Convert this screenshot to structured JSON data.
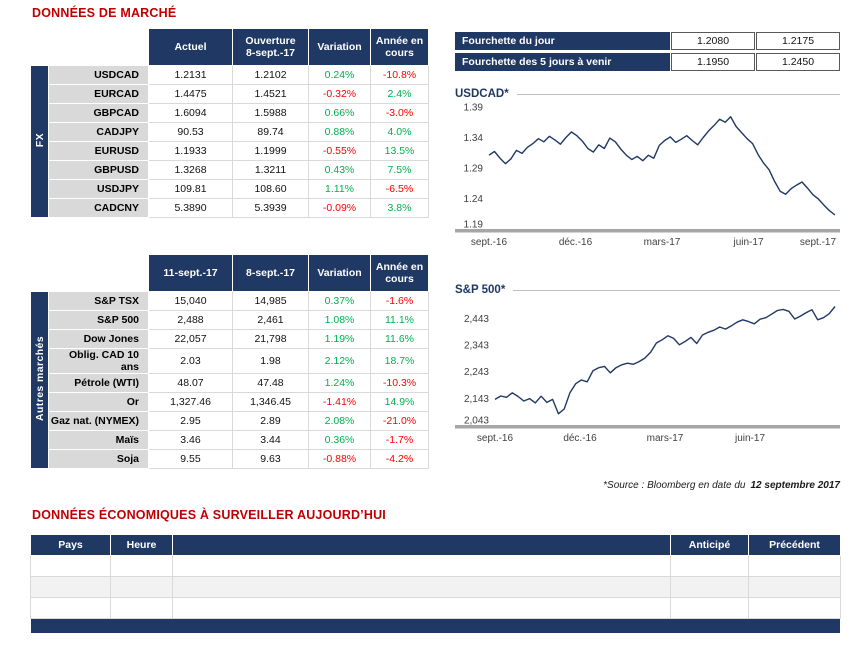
{
  "titles": {
    "market": "DONNÉES DE MARCHÉ",
    "econ": "DONNÉES ÉCONOMIQUES À SURVEILLER AUJOURD’HUI"
  },
  "colors": {
    "navy": "#1F3864",
    "title_red": "#C00000",
    "positive_green": "#00B050",
    "negative_red": "#FF0000",
    "label_gray": "#D9D9D9",
    "axis_gray": "#A6A6A6"
  },
  "fourchette": {
    "rows": [
      {
        "label": "Fourchette du jour",
        "low": "1.2080",
        "high": "1.2175"
      },
      {
        "label": "Fourchette des 5 jours à venir",
        "low": "1.1950",
        "high": "1.2450"
      }
    ]
  },
  "fx_table": {
    "side_label": "FX",
    "headers": [
      "Actuel",
      "Ouverture\n8-sept.-17",
      "Variation",
      "Année en\ncours"
    ],
    "rows": [
      {
        "label": "USDCAD",
        "c1": "1.2131",
        "c2": "1.2102",
        "variation": "0.24%",
        "ytd": "-10.8%"
      },
      {
        "label": "EURCAD",
        "c1": "1.4475",
        "c2": "1.4521",
        "variation": "-0.32%",
        "ytd": "2.4%"
      },
      {
        "label": "GBPCAD",
        "c1": "1.6094",
        "c2": "1.5988",
        "variation": "0.66%",
        "ytd": "-3.0%"
      },
      {
        "label": "CADJPY",
        "c1": "90.53",
        "c2": "89.74",
        "variation": "0.88%",
        "ytd": "4.0%"
      },
      {
        "label": "EURUSD",
        "c1": "1.1933",
        "c2": "1.1999",
        "variation": "-0.55%",
        "ytd": "13.5%"
      },
      {
        "label": "GBPUSD",
        "c1": "1.3268",
        "c2": "1.3211",
        "variation": "0.43%",
        "ytd": "7.5%"
      },
      {
        "label": "USDJPY",
        "c1": "109.81",
        "c2": "108.60",
        "variation": "1.11%",
        "ytd": "-6.5%"
      },
      {
        "label": "CADCNY",
        "c1": "5.3890",
        "c2": "5.3939",
        "variation": "-0.09%",
        "ytd": "3.8%"
      }
    ]
  },
  "markets_table": {
    "side_label": "Autres marchés",
    "headers": [
      "11-sept.-17",
      "8-sept.-17",
      "Variation",
      "Année en\ncours"
    ],
    "rows": [
      {
        "label": "S&P TSX",
        "c1": "15,040",
        "c2": "14,985",
        "variation": "0.37%",
        "ytd": "-1.6%"
      },
      {
        "label": "S&P 500",
        "c1": "2,488",
        "c2": "2,461",
        "variation": "1.08%",
        "ytd": "11.1%"
      },
      {
        "label": "Dow Jones",
        "c1": "22,057",
        "c2": "21,798",
        "variation": "1.19%",
        "ytd": "11.6%"
      },
      {
        "label": "Oblig. CAD 10 ans",
        "c1": "2.03",
        "c2": "1.98",
        "variation": "2.12%",
        "ytd": "18.7%"
      },
      {
        "label": "Pétrole (WTI)",
        "c1": "48.07",
        "c2": "47.48",
        "variation": "1.24%",
        "ytd": "-10.3%"
      },
      {
        "label": "Or",
        "c1": "1,327.46",
        "c2": "1,346.45",
        "variation": "-1.41%",
        "ytd": "14.9%"
      },
      {
        "label": "Gaz nat. (NYMEX)",
        "c1": "2.95",
        "c2": "2.89",
        "variation": "2.08%",
        "ytd": "-21.0%"
      },
      {
        "label": "Maïs",
        "c1": "3.46",
        "c2": "3.44",
        "variation": "0.36%",
        "ytd": "-1.7%"
      },
      {
        "label": "Soja",
        "c1": "9.55",
        "c2": "9.63",
        "variation": "-0.88%",
        "ytd": "-4.2%"
      }
    ]
  },
  "source": {
    "prefix": "*Source : Bloomberg en date du",
    "date": "12 septembre 2017"
  },
  "econ_table": {
    "headers": [
      "Pays",
      "Heure",
      "",
      "Anticipé",
      "Précédent"
    ],
    "rows": [
      [
        "",
        "",
        "",
        "",
        ""
      ],
      [
        "",
        "",
        "",
        "",
        ""
      ],
      [
        "",
        "",
        "",
        "",
        ""
      ]
    ]
  },
  "chart_data": [
    {
      "type": "line",
      "title": "USDCAD*",
      "ylim": [
        1.19,
        1.39
      ],
      "yticks": [
        {
          "v": 1.39,
          "label": "1.39"
        },
        {
          "v": 1.34,
          "label": "1.34"
        },
        {
          "v": 1.29,
          "label": "1.29"
        },
        {
          "v": 1.24,
          "label": "1.24"
        },
        {
          "v": 1.19,
          "label": "1.19"
        }
      ],
      "xticks": [
        {
          "p": 0,
          "label": "sept.-16"
        },
        {
          "p": 0.25,
          "label": "déc.-16"
        },
        {
          "p": 0.5,
          "label": "mars-17"
        },
        {
          "p": 0.75,
          "label": "juin-17"
        },
        {
          "p": 1,
          "label": "sept.-17"
        }
      ],
      "values": [
        1.311,
        1.317,
        1.306,
        1.297,
        1.305,
        1.319,
        1.314,
        1.324,
        1.33,
        1.338,
        1.333,
        1.342,
        1.336,
        1.329,
        1.34,
        1.349,
        1.343,
        1.334,
        1.322,
        1.316,
        1.328,
        1.322,
        1.339,
        1.333,
        1.321,
        1.311,
        1.304,
        1.309,
        1.302,
        1.311,
        1.306,
        1.327,
        1.335,
        1.341,
        1.332,
        1.337,
        1.343,
        1.335,
        1.328,
        1.34,
        1.351,
        1.36,
        1.37,
        1.365,
        1.374,
        1.358,
        1.348,
        1.338,
        1.33,
        1.312,
        1.298,
        1.287,
        1.268,
        1.252,
        1.247,
        1.256,
        1.262,
        1.267,
        1.257,
        1.246,
        1.239,
        1.229,
        1.22,
        1.213
      ]
    },
    {
      "type": "line",
      "title": "S&P 500*",
      "ylim": [
        2043,
        2501
      ],
      "yticks": [
        {
          "v": 2443,
          "label": "2,443"
        },
        {
          "v": 2343,
          "label": "2,343"
        },
        {
          "v": 2243,
          "label": "2,243"
        },
        {
          "v": 2143,
          "label": "2,143"
        },
        {
          "v": 2043,
          "label": "2,043"
        }
      ],
      "xticks": [
        {
          "p": 0,
          "label": "sept.-16"
        },
        {
          "p": 0.25,
          "label": "déc.-16"
        },
        {
          "p": 0.5,
          "label": "mars-17"
        },
        {
          "p": 0.75,
          "label": "juin-17"
        }
      ],
      "values": [
        2139,
        2152,
        2147,
        2164,
        2150,
        2133,
        2142,
        2126,
        2151,
        2128,
        2139,
        2085,
        2103,
        2164,
        2198,
        2212,
        2205,
        2247,
        2258,
        2263,
        2239,
        2258,
        2269,
        2275,
        2271,
        2281,
        2294,
        2316,
        2351,
        2363,
        2378,
        2368,
        2344,
        2357,
        2372,
        2349,
        2381,
        2391,
        2399,
        2411,
        2403,
        2415,
        2429,
        2438,
        2431,
        2423,
        2440,
        2446,
        2459,
        2473,
        2477,
        2470,
        2441,
        2452,
        2465,
        2476,
        2438,
        2446,
        2461,
        2488
      ]
    }
  ]
}
